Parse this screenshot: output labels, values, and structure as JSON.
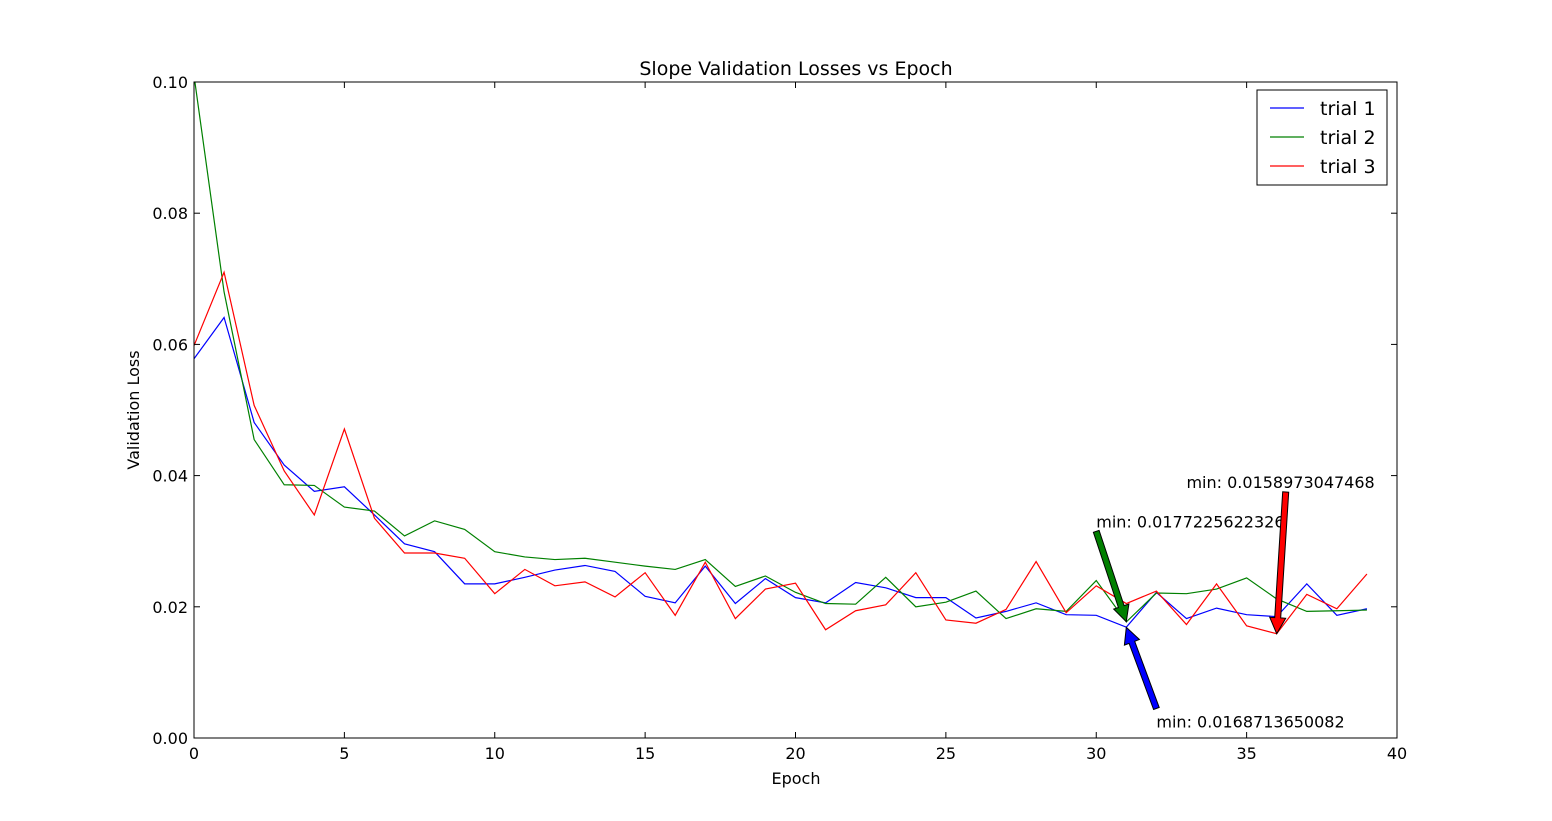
{
  "chart_data": {
    "type": "line",
    "title": "Slope Validation Losses vs Epoch",
    "xlabel": "Epoch",
    "ylabel": "Validation Loss",
    "xlim": [
      0,
      40
    ],
    "ylim": [
      0,
      0.1
    ],
    "xticks": [
      0,
      5,
      10,
      15,
      20,
      25,
      30,
      35,
      40
    ],
    "xtick_labels": [
      "0",
      "5",
      "10",
      "15",
      "20",
      "25",
      "30",
      "35",
      "40"
    ],
    "yticks": [
      0,
      0.02,
      0.04,
      0.06,
      0.08,
      0.1
    ],
    "ytick_labels": [
      "0.00",
      "0.02",
      "0.04",
      "0.06",
      "0.08",
      "0.10"
    ],
    "grid": false,
    "legend_position": "top-right",
    "x": [
      0,
      1,
      2,
      3,
      4,
      5,
      6,
      7,
      8,
      9,
      10,
      11,
      12,
      13,
      14,
      15,
      16,
      17,
      18,
      19,
      20,
      21,
      22,
      23,
      24,
      25,
      26,
      27,
      28,
      29,
      30,
      31,
      32,
      33,
      34,
      35,
      36,
      37,
      38,
      39
    ],
    "series": [
      {
        "name": "trial 1",
        "color": "#0000ff",
        "values": [
          0.0578,
          0.0641,
          0.0481,
          0.0416,
          0.0376,
          0.0383,
          0.034,
          0.0296,
          0.0284,
          0.0235,
          0.0235,
          0.0245,
          0.0256,
          0.0263,
          0.0254,
          0.0216,
          0.0206,
          0.0262,
          0.0205,
          0.0243,
          0.0214,
          0.0206,
          0.0237,
          0.0229,
          0.0214,
          0.0214,
          0.0183,
          0.0193,
          0.0206,
          0.0188,
          0.0187,
          0.0169,
          0.0222,
          0.0182,
          0.0198,
          0.0188,
          0.0185,
          0.0235,
          0.0187,
          0.0197
        ]
      },
      {
        "name": "trial 2",
        "color": "#008000",
        "values": [
          0.101,
          0.068,
          0.0455,
          0.0386,
          0.0385,
          0.0352,
          0.0346,
          0.0308,
          0.0331,
          0.0318,
          0.0284,
          0.0276,
          0.0272,
          0.0274,
          0.0268,
          0.0262,
          0.0257,
          0.0272,
          0.0231,
          0.0247,
          0.0222,
          0.0205,
          0.0204,
          0.0245,
          0.02,
          0.0207,
          0.0224,
          0.0182,
          0.0197,
          0.0193,
          0.024,
          0.0177,
          0.0221,
          0.022,
          0.0227,
          0.0244,
          0.0212,
          0.0193,
          0.0194,
          0.0195
        ]
      },
      {
        "name": "trial 3",
        "color": "#ff0000",
        "values": [
          0.0598,
          0.071,
          0.0507,
          0.0407,
          0.034,
          0.0471,
          0.0335,
          0.0282,
          0.0282,
          0.0274,
          0.022,
          0.0257,
          0.0232,
          0.0238,
          0.0215,
          0.0252,
          0.0187,
          0.0268,
          0.0182,
          0.0227,
          0.0236,
          0.0165,
          0.0194,
          0.0203,
          0.0252,
          0.018,
          0.0175,
          0.0196,
          0.0269,
          0.0191,
          0.0232,
          0.0205,
          0.0224,
          0.0173,
          0.0235,
          0.0171,
          0.0159,
          0.0219,
          0.0197,
          0.025
        ]
      }
    ],
    "annotations": [
      {
        "text": "min: 0.0168713650082",
        "color": "#0000ff",
        "point_x": 31,
        "point_y": 0.0168713650082,
        "text_x": 32,
        "text_y": 0.0025,
        "tail_x": 32,
        "tail_y": 0.0045
      },
      {
        "text": "min: 0.0177225622326",
        "color": "#008000",
        "point_x": 31,
        "point_y": 0.0177225622326,
        "text_x": 30,
        "text_y": 0.033,
        "tail_x": 30,
        "tail_y": 0.0315
      },
      {
        "text": "min: 0.0158973047468",
        "color": "#ff0000",
        "point_x": 36,
        "point_y": 0.0158973047468,
        "text_x": 33,
        "text_y": 0.039,
        "tail_x": 36.3,
        "tail_y": 0.0375
      }
    ]
  }
}
